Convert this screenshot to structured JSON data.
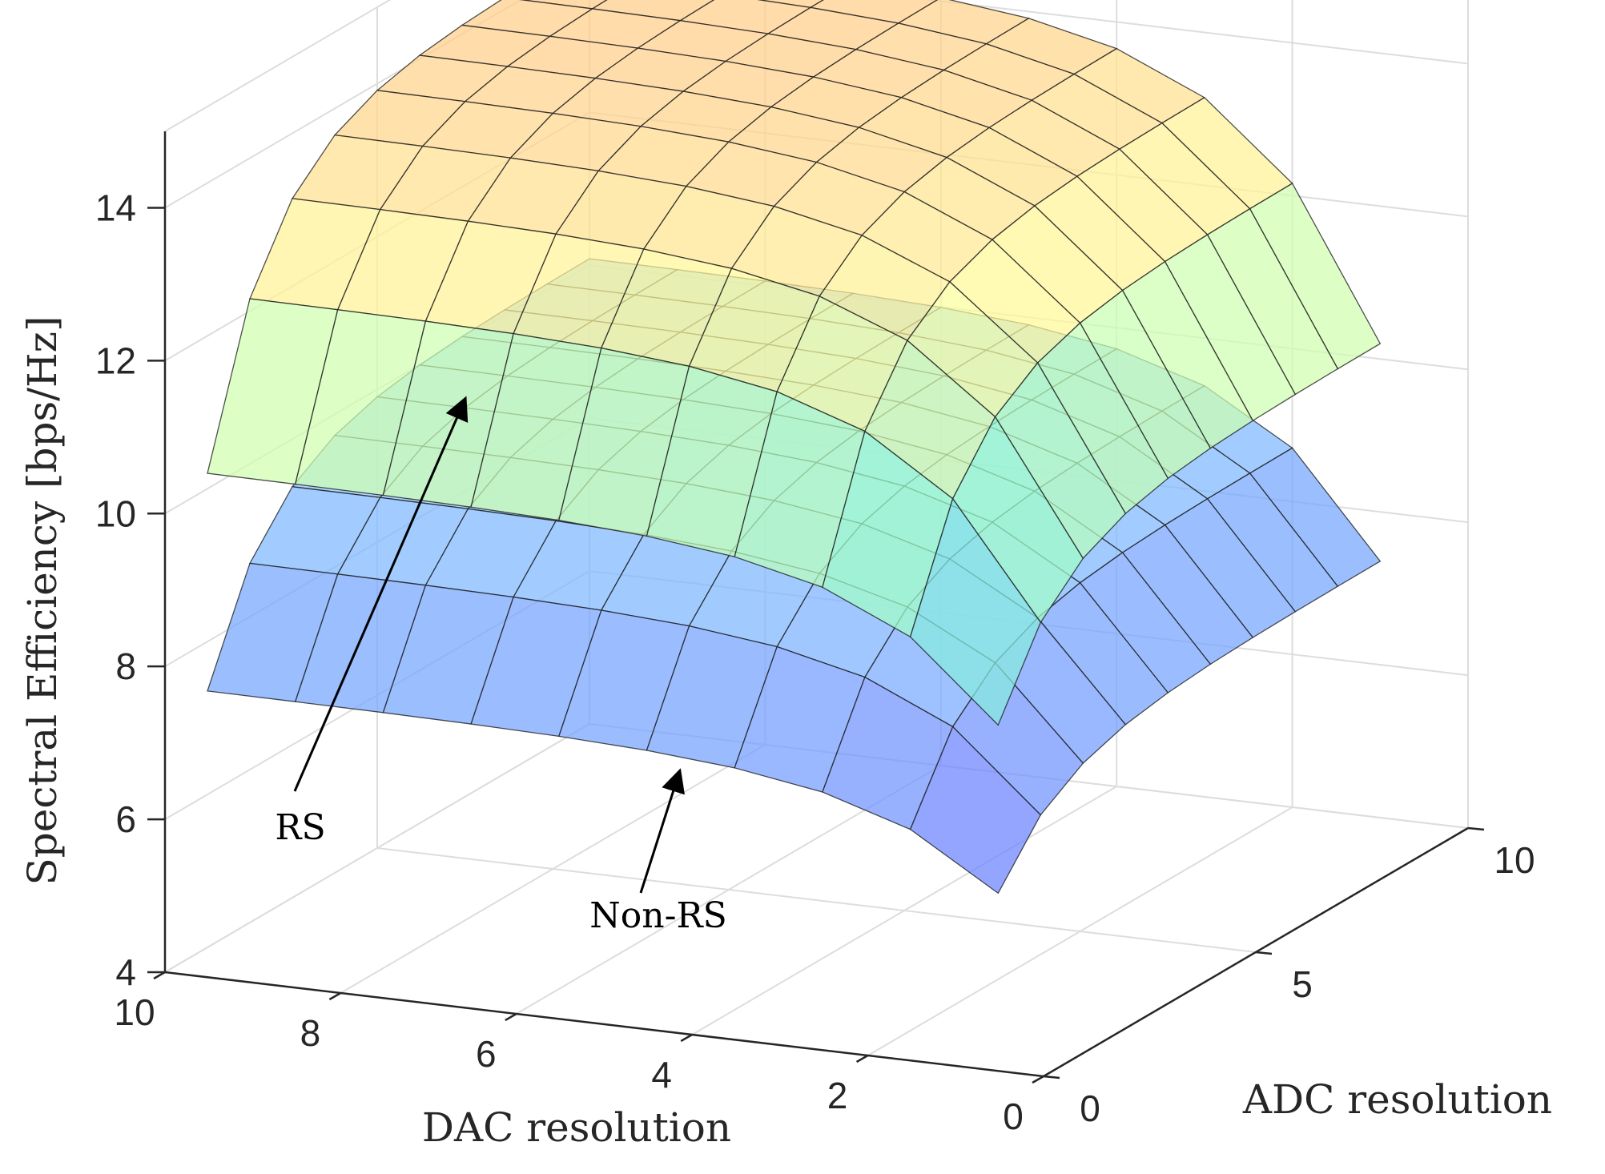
{
  "chart_data": {
    "type": "surface",
    "xlabel": "DAC resolution",
    "ylabel": "ADC resolution",
    "zlabel": "Spectral Efficiency [bps/Hz]",
    "xlim": [
      0,
      10
    ],
    "ylim": [
      0,
      10
    ],
    "zlim": [
      4,
      15
    ],
    "xticks": [
      "0",
      "2",
      "4",
      "6",
      "8",
      "10"
    ],
    "yticks": [
      "0",
      "5",
      "10"
    ],
    "zticks": [
      "4",
      "6",
      "8",
      "10",
      "12",
      "14"
    ],
    "grid": true,
    "x": [
      1,
      2,
      3,
      4,
      5,
      6,
      7,
      8,
      9,
      10
    ],
    "y": [
      1,
      2,
      3,
      4,
      5,
      6,
      7,
      8,
      9,
      10
    ],
    "series": [
      {
        "name": "RS",
        "z_max": 14.2,
        "z_min": 5.9,
        "colormap": [
          "#9999ff",
          "#66ccff",
          "#99ffcc",
          "#ffff99",
          "#ffcc88"
        ]
      },
      {
        "name": "Non-RS",
        "z_max": 10.1,
        "z_min": 4.4,
        "colormap": [
          "#6650cc",
          "#6677ff",
          "#77aaff",
          "#88ccff"
        ]
      }
    ],
    "annotations": [
      {
        "text": "RS",
        "points_to": "RS"
      },
      {
        "text": "Non-RS",
        "points_to": "Non-RS"
      }
    ]
  }
}
